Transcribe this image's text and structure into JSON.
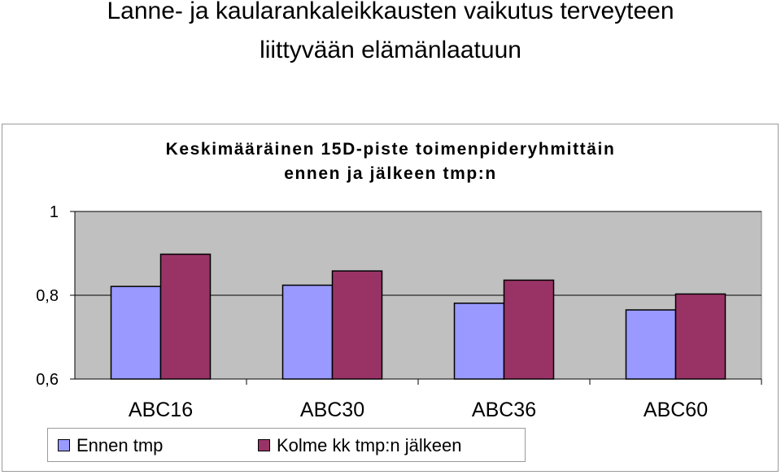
{
  "page": {
    "title_line_1": "Lanne- ja kaularankaleikkausten vaikutus terveyteen",
    "title_line_2": "liittyvään elämänlaatuun"
  },
  "chart_data": {
    "type": "bar",
    "title_line_1": "Keskimääräinen 15D-piste toimenpideryhmittäin",
    "title_line_2": "ennen ja jälkeen tmp:n",
    "categories": [
      "ABC16",
      "ABC30",
      "ABC36",
      "ABC60"
    ],
    "series": [
      {
        "name": "Ennen tmp",
        "color": "#9999ff",
        "values": [
          0.821,
          0.824,
          0.781,
          0.765
        ]
      },
      {
        "name": "Kolme kk tmp:n jälkeen",
        "color": "#993366",
        "values": [
          0.898,
          0.858,
          0.836,
          0.803
        ]
      }
    ],
    "ylim": [
      0.6,
      1
    ],
    "yticks": [
      {
        "value": 0.6,
        "label": "0,6"
      },
      {
        "value": 0.8,
        "label": "0,8"
      },
      {
        "value": 1,
        "label": "1"
      }
    ],
    "plot_background": "#c0c0c0",
    "grid": true,
    "legend_position": "bottom-left"
  }
}
